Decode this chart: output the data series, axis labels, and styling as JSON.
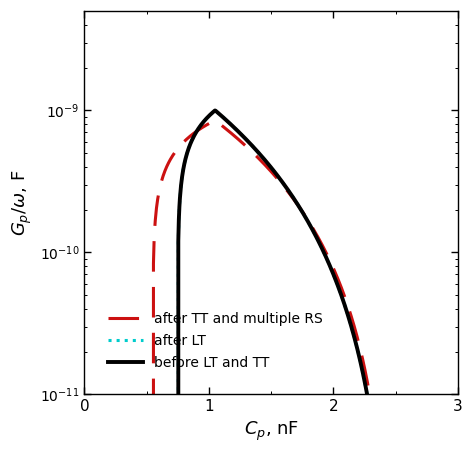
{
  "title": "",
  "xlabel": "$C_{p}$, nF",
  "ylabel": "$G_{p}/\\omega$, F",
  "xlim": [
    0,
    2.9
  ],
  "ylim": [
    1e-11,
    5e-09
  ],
  "background_color": "#ffffff",
  "line1_color": "#000000",
  "line2_color": "#00CCCC",
  "line3_color": "#CC1111",
  "legend_labels": [
    "before LT and TT",
    "after LT",
    "after TT and multiple RS"
  ]
}
